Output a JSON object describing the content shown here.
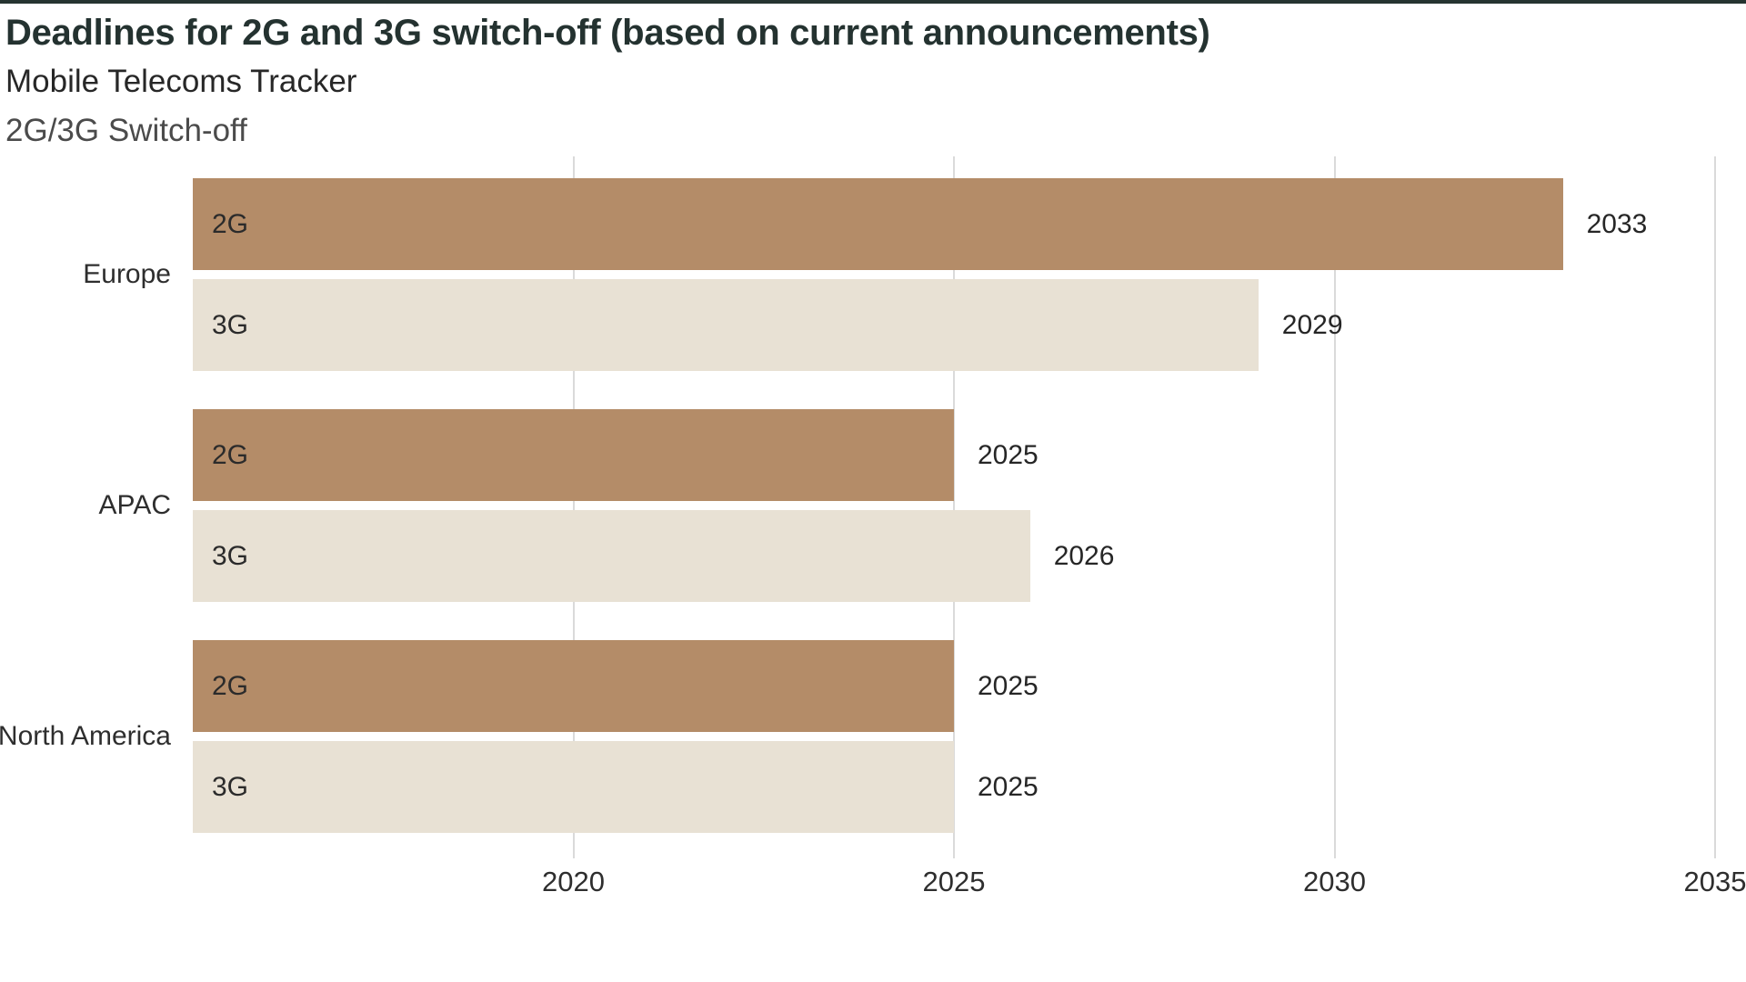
{
  "chart_data": {
    "type": "bar",
    "orientation": "horizontal",
    "title": "Deadlines for 2G and 3G switch-off (based on current announcements)",
    "subtitle": "Mobile Telecoms Tracker",
    "series_label": "2G/3G Switch-off",
    "x_axis": {
      "min": 2015,
      "max": 2035,
      "ticks": [
        2020,
        2025,
        2030,
        2035
      ],
      "grid": true
    },
    "groups": [
      {
        "category": "Europe",
        "bars": [
          {
            "series": "2G",
            "value": 2033
          },
          {
            "series": "3G",
            "value": 2029
          }
        ]
      },
      {
        "category": "APAC",
        "bars": [
          {
            "series": "2G",
            "value": 2025
          },
          {
            "series": "3G",
            "value": 2026
          }
        ]
      },
      {
        "category": "North America",
        "bars": [
          {
            "series": "2G",
            "value": 2025
          },
          {
            "series": "3G",
            "value": 2025
          }
        ]
      }
    ],
    "colors": {
      "2G": "#b48c68",
      "3G": "#e8e1d4"
    },
    "value_labels": "end-of-bar",
    "category_labels_position": "left",
    "series_labels_position": "inside-bar-left"
  }
}
